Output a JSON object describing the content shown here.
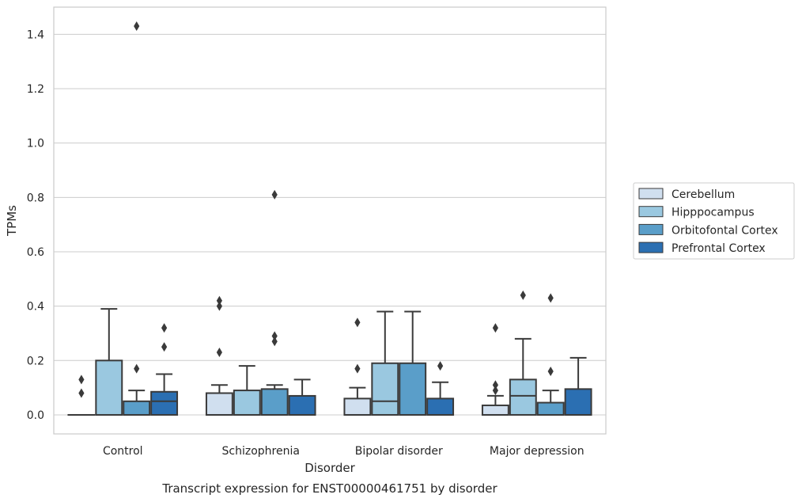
{
  "chart_data": {
    "type": "box",
    "title": "",
    "caption": "Transcript expression for ENST00000461751 by disorder",
    "xlabel": "Disorder",
    "ylabel": "TPMs",
    "ylim": [
      -0.07,
      1.5
    ],
    "yticks": [
      "0.0",
      "0.2",
      "0.4",
      "0.6",
      "0.8",
      "1.0",
      "1.2",
      "1.4"
    ],
    "grid": true,
    "legend_position": "right",
    "categories": [
      "Control",
      "Schizophrenia",
      "Bipolar disorder",
      "Major depression"
    ],
    "series": [
      {
        "name": "Cerebellum",
        "color": "#d0dfef",
        "boxes": [
          {
            "whisker_low": 0,
            "q1": 0,
            "median": 0,
            "q3": 0,
            "whisker_high": 0,
            "outliers": [
              0.08,
              0.13
            ]
          },
          {
            "whisker_low": 0,
            "q1": 0,
            "median": 0,
            "q3": 0.08,
            "whisker_high": 0.11,
            "outliers": [
              0.23,
              0.4,
              0.42
            ]
          },
          {
            "whisker_low": 0,
            "q1": 0,
            "median": 0,
            "q3": 0.06,
            "whisker_high": 0.1,
            "outliers": [
              0.17,
              0.34
            ]
          },
          {
            "whisker_low": 0,
            "q1": 0,
            "median": 0,
            "q3": 0.035,
            "whisker_high": 0.07,
            "outliers": [
              0.09,
              0.11,
              0.32
            ]
          }
        ]
      },
      {
        "name": "Hipppocampus",
        "color": "#9ac8e0",
        "boxes": [
          {
            "whisker_low": 0,
            "q1": 0,
            "median": 0,
            "q3": 0.2,
            "whisker_high": 0.39,
            "outliers": []
          },
          {
            "whisker_low": 0,
            "q1": 0,
            "median": 0,
            "q3": 0.09,
            "whisker_high": 0.18,
            "outliers": []
          },
          {
            "whisker_low": 0,
            "q1": 0,
            "median": 0.05,
            "q3": 0.19,
            "whisker_high": 0.38,
            "outliers": []
          },
          {
            "whisker_low": 0,
            "q1": 0,
            "median": 0.07,
            "q3": 0.13,
            "whisker_high": 0.28,
            "outliers": [
              0.44
            ]
          }
        ]
      },
      {
        "name": "Orbitofontal Cortex",
        "color": "#5a9ec9",
        "boxes": [
          {
            "whisker_low": 0,
            "q1": 0,
            "median": 0,
            "q3": 0.05,
            "whisker_high": 0.09,
            "outliers": [
              0.17,
              1.43
            ]
          },
          {
            "whisker_low": 0,
            "q1": 0,
            "median": 0,
            "q3": 0.095,
            "whisker_high": 0.11,
            "outliers": [
              0.27,
              0.29,
              0.81
            ]
          },
          {
            "whisker_low": 0,
            "q1": 0,
            "median": 0,
            "q3": 0.19,
            "whisker_high": 0.38,
            "outliers": []
          },
          {
            "whisker_low": 0,
            "q1": 0,
            "median": 0,
            "q3": 0.045,
            "whisker_high": 0.09,
            "outliers": [
              0.16,
              0.43
            ]
          }
        ]
      },
      {
        "name": "Prefrontal Cortex",
        "color": "#2b6fb2",
        "boxes": [
          {
            "whisker_low": 0,
            "q1": 0,
            "median": 0.05,
            "q3": 0.085,
            "whisker_high": 0.15,
            "outliers": [
              0.25,
              0.32
            ]
          },
          {
            "whisker_low": 0,
            "q1": 0,
            "median": 0,
            "q3": 0.07,
            "whisker_high": 0.13,
            "outliers": []
          },
          {
            "whisker_low": 0,
            "q1": 0,
            "median": 0,
            "q3": 0.06,
            "whisker_high": 0.12,
            "outliers": [
              0.18
            ]
          },
          {
            "whisker_low": 0,
            "q1": 0,
            "median": 0,
            "q3": 0.095,
            "whisker_high": 0.21,
            "outliers": []
          }
        ]
      }
    ]
  }
}
